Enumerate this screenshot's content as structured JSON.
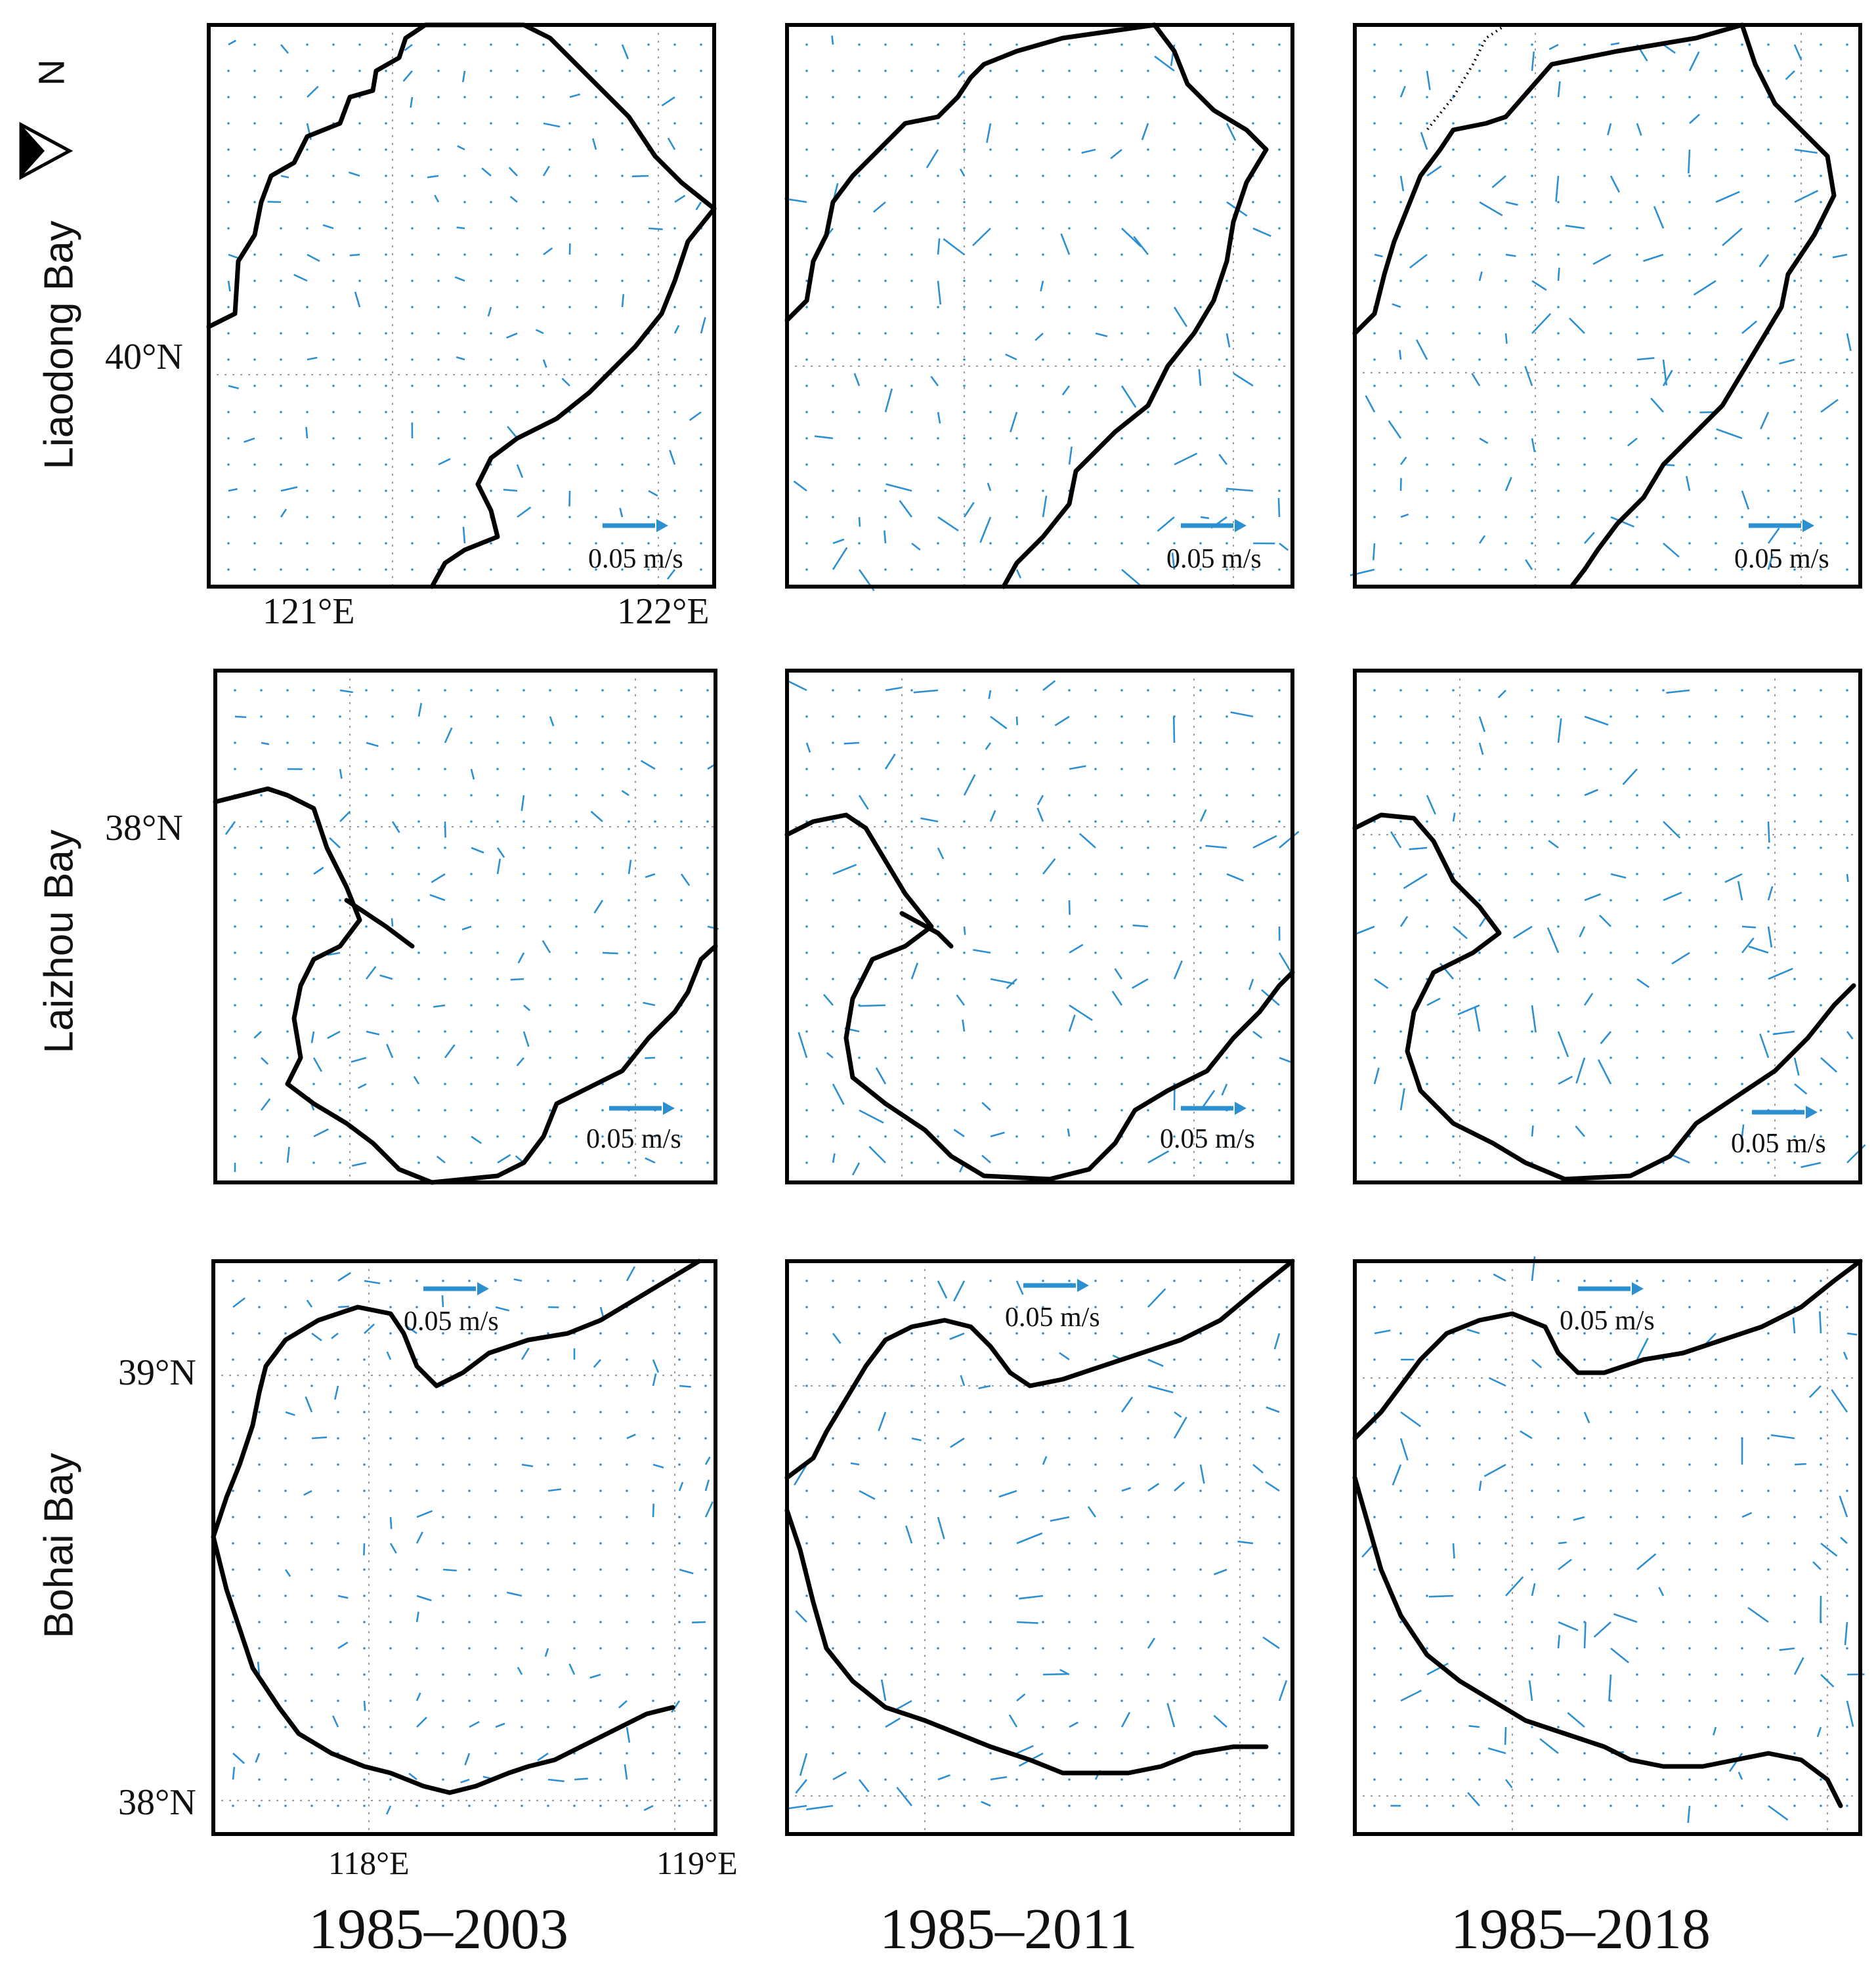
{
  "figure": {
    "north_label": "N",
    "rows": [
      {
        "title": "Liaodong Bay",
        "lat_labels": [
          "40°N"
        ],
        "lon_labels": [
          "121°E",
          "122°E"
        ]
      },
      {
        "title": "Laizhou Bay",
        "lat_labels": [
          "38°N"
        ],
        "lon_labels": []
      },
      {
        "title": "Bohai Bay",
        "lat_labels": [
          "39°N",
          "38°N"
        ],
        "lon_labels": [
          "118°E",
          "119°E"
        ]
      }
    ],
    "periods": [
      "1985–2003",
      "1985–2011",
      "1985–2018"
    ],
    "reference_vector": "0.05 m/s",
    "colors": {
      "vector": "#2b8fd0",
      "coastline": "#000000",
      "grid": "#9a9a9a"
    }
  },
  "map_panels": [
    {
      "row": "Liaodong Bay",
      "period": "1985–2003",
      "reference_vector": "0.05 m/s"
    },
    {
      "row": "Liaodong Bay",
      "period": "1985–2011",
      "reference_vector": "0.05 m/s"
    },
    {
      "row": "Liaodong Bay",
      "period": "1985–2018",
      "reference_vector": "0.05 m/s"
    },
    {
      "row": "Laizhou Bay",
      "period": "1985–2003",
      "reference_vector": "0.05 m/s"
    },
    {
      "row": "Laizhou Bay",
      "period": "1985–2011",
      "reference_vector": "0.05 m/s"
    },
    {
      "row": "Laizhou Bay",
      "period": "1985–2018",
      "reference_vector": "0.05 m/s"
    },
    {
      "row": "Bohai Bay",
      "period": "1985–2003",
      "reference_vector": "0.05 m/s"
    },
    {
      "row": "Bohai Bay",
      "period": "1985–2011",
      "reference_vector": "0.05 m/s"
    },
    {
      "row": "Bohai Bay",
      "period": "1985–2018",
      "reference_vector": "0.05 m/s"
    }
  ]
}
